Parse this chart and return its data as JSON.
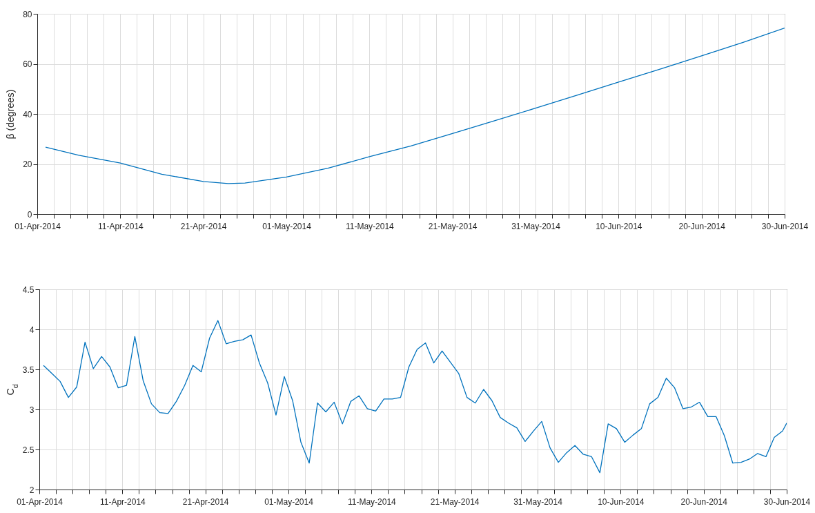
{
  "chart_data": [
    {
      "type": "line",
      "ylabel": "β (degrees)",
      "grid": true,
      "xlim": [
        "2014-04-01",
        "2014-06-30"
      ],
      "ylim": [
        0,
        80
      ],
      "yticks": [
        0,
        20,
        40,
        60,
        80
      ],
      "xticks": [
        {
          "value": "2014-04-01",
          "label": "01-Apr-2014"
        },
        {
          "value": "2014-04-03",
          "label": null
        },
        {
          "value": "2014-04-05",
          "label": null
        },
        {
          "value": "2014-04-07",
          "label": null
        },
        {
          "value": "2014-04-09",
          "label": null
        },
        {
          "value": "2014-04-11",
          "label": "11-Apr-2014"
        },
        {
          "value": "2014-04-13",
          "label": null
        },
        {
          "value": "2014-04-15",
          "label": null
        },
        {
          "value": "2014-04-17",
          "label": null
        },
        {
          "value": "2014-04-19",
          "label": null
        },
        {
          "value": "2014-04-21",
          "label": "21-Apr-2014"
        },
        {
          "value": "2014-04-23",
          "label": null
        },
        {
          "value": "2014-04-25",
          "label": null
        },
        {
          "value": "2014-04-27",
          "label": null
        },
        {
          "value": "2014-04-29",
          "label": null
        },
        {
          "value": "2014-05-01",
          "label": "01-May-2014"
        },
        {
          "value": "2014-05-03",
          "label": null
        },
        {
          "value": "2014-05-05",
          "label": null
        },
        {
          "value": "2014-05-07",
          "label": null
        },
        {
          "value": "2014-05-09",
          "label": null
        },
        {
          "value": "2014-05-11",
          "label": "11-May-2014"
        },
        {
          "value": "2014-05-13",
          "label": null
        },
        {
          "value": "2014-05-15",
          "label": null
        },
        {
          "value": "2014-05-17",
          "label": null
        },
        {
          "value": "2014-05-19",
          "label": null
        },
        {
          "value": "2014-05-21",
          "label": "21-May-2014"
        },
        {
          "value": "2014-05-23",
          "label": null
        },
        {
          "value": "2014-05-25",
          "label": null
        },
        {
          "value": "2014-05-27",
          "label": null
        },
        {
          "value": "2014-05-29",
          "label": null
        },
        {
          "value": "2014-05-31",
          "label": "31-May-2014"
        },
        {
          "value": "2014-06-02",
          "label": null
        },
        {
          "value": "2014-06-04",
          "label": null
        },
        {
          "value": "2014-06-06",
          "label": null
        },
        {
          "value": "2014-06-08",
          "label": null
        },
        {
          "value": "2014-06-10",
          "label": "10-Jun-2014"
        },
        {
          "value": "2014-06-12",
          "label": null
        },
        {
          "value": "2014-06-14",
          "label": null
        },
        {
          "value": "2014-06-16",
          "label": null
        },
        {
          "value": "2014-06-18",
          "label": null
        },
        {
          "value": "2014-06-20",
          "label": "20-Jun-2014"
        },
        {
          "value": "2014-06-22",
          "label": null
        },
        {
          "value": "2014-06-24",
          "label": null
        },
        {
          "value": "2014-06-26",
          "label": null
        },
        {
          "value": "2014-06-28",
          "label": null
        },
        {
          "value": "2014-06-30",
          "label": "30-Jun-2014"
        }
      ],
      "x": [
        "2014-04-02",
        "2014-04-06",
        "2014-04-11",
        "2014-04-16",
        "2014-04-21",
        "2014-04-24",
        "2014-04-26",
        "2014-05-01",
        "2014-05-06",
        "2014-05-11",
        "2014-05-16",
        "2014-05-21",
        "2014-05-26",
        "2014-05-31",
        "2014-06-05",
        "2014-06-10",
        "2014-06-15",
        "2014-06-20",
        "2014-06-25",
        "2014-06-30"
      ],
      "series": [
        {
          "color": "#0072bd",
          "values": [
            26.7,
            23.5,
            20.4,
            15.9,
            13.0,
            12.2,
            12.4,
            14.8,
            18.3,
            22.9,
            27.2,
            32.2,
            37.2,
            42.3,
            47.5,
            52.7,
            57.9,
            63.2,
            68.6,
            74.3
          ]
        }
      ]
    },
    {
      "type": "line",
      "ylabel": "C$_{d}$",
      "grid": true,
      "xlim": [
        "2014-04-01",
        "2014-06-30"
      ],
      "ylim": [
        2,
        4.5
      ],
      "yticks": [
        2,
        2.5,
        3,
        3.5,
        4,
        4.5
      ],
      "xticks": [
        {
          "value": "2014-04-01",
          "label": "01-Apr-2014"
        },
        {
          "value": "2014-04-03",
          "label": null
        },
        {
          "value": "2014-04-05",
          "label": null
        },
        {
          "value": "2014-04-07",
          "label": null
        },
        {
          "value": "2014-04-09",
          "label": null
        },
        {
          "value": "2014-04-11",
          "label": "11-Apr-2014"
        },
        {
          "value": "2014-04-13",
          "label": null
        },
        {
          "value": "2014-04-15",
          "label": null
        },
        {
          "value": "2014-04-17",
          "label": null
        },
        {
          "value": "2014-04-19",
          "label": null
        },
        {
          "value": "2014-04-21",
          "label": "21-Apr-2014"
        },
        {
          "value": "2014-04-23",
          "label": null
        },
        {
          "value": "2014-04-25",
          "label": null
        },
        {
          "value": "2014-04-27",
          "label": null
        },
        {
          "value": "2014-04-29",
          "label": null
        },
        {
          "value": "2014-05-01",
          "label": "01-May-2014"
        },
        {
          "value": "2014-05-03",
          "label": null
        },
        {
          "value": "2014-05-05",
          "label": null
        },
        {
          "value": "2014-05-07",
          "label": null
        },
        {
          "value": "2014-05-09",
          "label": null
        },
        {
          "value": "2014-05-11",
          "label": "11-May-2014"
        },
        {
          "value": "2014-05-13",
          "label": null
        },
        {
          "value": "2014-05-15",
          "label": null
        },
        {
          "value": "2014-05-17",
          "label": null
        },
        {
          "value": "2014-05-19",
          "label": null
        },
        {
          "value": "2014-05-21",
          "label": "21-May-2014"
        },
        {
          "value": "2014-05-23",
          "label": null
        },
        {
          "value": "2014-05-25",
          "label": null
        },
        {
          "value": "2014-05-27",
          "label": null
        },
        {
          "value": "2014-05-29",
          "label": null
        },
        {
          "value": "2014-05-31",
          "label": "31-May-2014"
        },
        {
          "value": "2014-06-02",
          "label": null
        },
        {
          "value": "2014-06-04",
          "label": null
        },
        {
          "value": "2014-06-06",
          "label": null
        },
        {
          "value": "2014-06-08",
          "label": null
        },
        {
          "value": "2014-06-10",
          "label": "10-Jun-2014"
        },
        {
          "value": "2014-06-12",
          "label": null
        },
        {
          "value": "2014-06-14",
          "label": null
        },
        {
          "value": "2014-06-16",
          "label": null
        },
        {
          "value": "2014-06-18",
          "label": null
        },
        {
          "value": "2014-06-20",
          "label": "20-Jun-2014"
        },
        {
          "value": "2014-06-22",
          "label": null
        },
        {
          "value": "2014-06-24",
          "label": null
        },
        {
          "value": "2014-06-26",
          "label": null
        },
        {
          "value": "2014-06-28",
          "label": null
        },
        {
          "value": "2014-06-30",
          "label": "30-Jun-2014"
        }
      ],
      "x": [
        "2014-04-01T12:00",
        "2014-04-02T12:00",
        "2014-04-03T12:00",
        "2014-04-04T12:00",
        "2014-04-05T12:00",
        "2014-04-06T12:00",
        "2014-04-07T12:00",
        "2014-04-08T12:00",
        "2014-04-09T12:00",
        "2014-04-10T12:00",
        "2014-04-11T12:00",
        "2014-04-12T12:00",
        "2014-04-13T12:00",
        "2014-04-14T12:00",
        "2014-04-15T12:00",
        "2014-04-16T12:00",
        "2014-04-17T12:00",
        "2014-04-18T12:00",
        "2014-04-19T12:00",
        "2014-04-20T12:00",
        "2014-04-21T12:00",
        "2014-04-22T12:00",
        "2014-04-23T12:00",
        "2014-04-24T12:00",
        "2014-04-25T12:00",
        "2014-04-26T12:00",
        "2014-04-27T12:00",
        "2014-04-28T12:00",
        "2014-04-29T12:00",
        "2014-04-30T12:00",
        "2014-05-01T12:00",
        "2014-05-02T12:00",
        "2014-05-03T12:00",
        "2014-05-04T12:00",
        "2014-05-05T12:00",
        "2014-05-06T12:00",
        "2014-05-07T12:00",
        "2014-05-08T12:00",
        "2014-05-09T12:00",
        "2014-05-10T12:00",
        "2014-05-11T12:00",
        "2014-05-12T12:00",
        "2014-05-13T12:00",
        "2014-05-14T12:00",
        "2014-05-15T12:00",
        "2014-05-16T12:00",
        "2014-05-17T12:00",
        "2014-05-18T12:00",
        "2014-05-19T12:00",
        "2014-05-20T12:00",
        "2014-05-21T12:00",
        "2014-05-22T12:00",
        "2014-05-23T12:00",
        "2014-05-24T12:00",
        "2014-05-25T12:00",
        "2014-05-26T12:00",
        "2014-05-27T12:00",
        "2014-05-28T12:00",
        "2014-05-29T12:00",
        "2014-05-30T12:00",
        "2014-05-31T12:00",
        "2014-06-01T12:00",
        "2014-06-02T12:00",
        "2014-06-03T12:00",
        "2014-06-04T12:00",
        "2014-06-05T12:00",
        "2014-06-06T12:00",
        "2014-06-07T12:00",
        "2014-06-08T12:00",
        "2014-06-09T12:00",
        "2014-06-10T12:00",
        "2014-06-11T12:00",
        "2014-06-12T12:00",
        "2014-06-13T12:00",
        "2014-06-14T12:00",
        "2014-06-15T12:00",
        "2014-06-16T12:00",
        "2014-06-17T12:00",
        "2014-06-18T12:00",
        "2014-06-19T12:00",
        "2014-06-20T12:00",
        "2014-06-21T12:00",
        "2014-06-22T12:00",
        "2014-06-23T12:00",
        "2014-06-24T12:00",
        "2014-06-25T12:00",
        "2014-06-26T12:00",
        "2014-06-27T12:00",
        "2014-06-28T12:00",
        "2014-06-29T12:00",
        "2014-06-30T00:00"
      ],
      "series": [
        {
          "color": "#0072bd",
          "values": [
            3.55,
            3.45,
            3.35,
            3.15,
            3.28,
            3.84,
            3.51,
            3.66,
            3.53,
            3.27,
            3.3,
            3.91,
            3.36,
            3.07,
            2.96,
            2.95,
            3.1,
            3.3,
            3.55,
            3.47,
            3.89,
            4.11,
            3.82,
            3.85,
            3.87,
            3.93,
            3.58,
            3.33,
            2.93,
            3.41,
            3.11,
            2.59,
            2.33,
            3.08,
            2.97,
            3.09,
            2.82,
            3.1,
            3.17,
            3.01,
            2.98,
            3.13,
            3.13,
            3.15,
            3.53,
            3.75,
            3.83,
            3.58,
            3.73,
            3.59,
            3.45,
            3.15,
            3.08,
            3.25,
            3.11,
            2.9,
            2.83,
            2.77,
            2.6,
            2.73,
            2.85,
            2.52,
            2.34,
            2.46,
            2.55,
            2.44,
            2.41,
            2.21,
            2.82,
            2.76,
            2.59,
            2.68,
            2.76,
            3.07,
            3.15,
            3.39,
            3.27,
            3.01,
            3.03,
            3.09,
            2.91,
            2.91,
            2.67,
            2.33,
            2.34,
            2.38,
            2.45,
            2.41,
            2.65,
            2.73,
            2.83
          ]
        }
      ]
    }
  ]
}
